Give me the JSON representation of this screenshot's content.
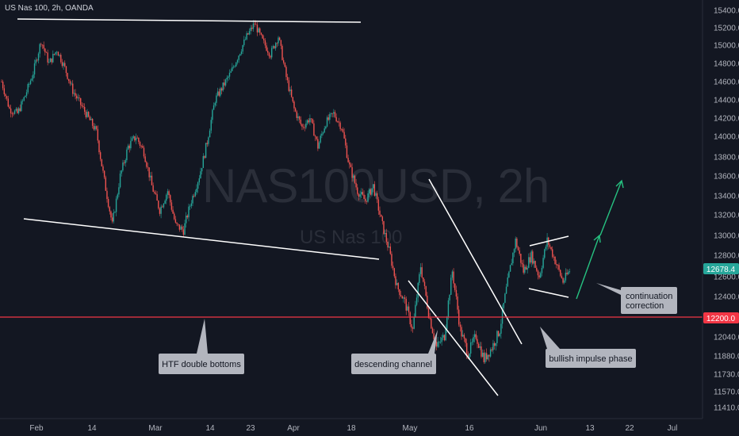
{
  "header": {
    "symbol_line": "US Nas 100, 2h, OANDA"
  },
  "watermark": {
    "ticker": "NAS100USD, 2h",
    "name": "US Nas 100"
  },
  "price_badge": {
    "value": "12678.4",
    "color": "#26a69a"
  },
  "support_badge": {
    "value": "12200.0",
    "color": "#f23645"
  },
  "annotations": [
    {
      "text": "HTF double bottoms"
    },
    {
      "text": "descending channel"
    },
    {
      "text": "bullish impulse phase"
    },
    {
      "text": "continuation",
      "text2": "correction"
    }
  ],
  "chart_data": {
    "type": "candlestick",
    "title": "US Nas 100, 2h, OANDA",
    "xlabel": "",
    "ylabel": "",
    "ylim": [
      11330,
      15460
    ],
    "y_ticks": [
      "15400.0",
      "15200.0",
      "15000.0",
      "14800.0",
      "14600.0",
      "14400.0",
      "14200.0",
      "14000.0",
      "13800.0",
      "13600.0",
      "13400.0",
      "13200.0",
      "13000.0",
      "12800.0",
      "12600.0",
      "12400.0",
      "12200.0",
      "12040.0",
      "11880.0",
      "11730.0",
      "11570.0",
      "11410.0"
    ],
    "x_ticks": [
      "Feb",
      "14",
      "Mar",
      "14",
      "23",
      "Apr",
      "18",
      "May",
      "16",
      "Jun",
      "13",
      "22",
      "Jul"
    ],
    "approx_close_path": [
      [
        0,
        14600
      ],
      [
        6,
        14300
      ],
      [
        12,
        14250
      ],
      [
        18,
        14450
      ],
      [
        24,
        14700
      ],
      [
        30,
        15050
      ],
      [
        36,
        14800
      ],
      [
        42,
        14950
      ],
      [
        48,
        14750
      ],
      [
        54,
        14500
      ],
      [
        60,
        14350
      ],
      [
        66,
        14200
      ],
      [
        72,
        14050
      ],
      [
        78,
        13550
      ],
      [
        84,
        13100
      ],
      [
        90,
        13600
      ],
      [
        96,
        13900
      ],
      [
        102,
        14000
      ],
      [
        108,
        13850
      ],
      [
        114,
        13500
      ],
      [
        120,
        13250
      ],
      [
        126,
        13450
      ],
      [
        132,
        13100
      ],
      [
        138,
        13050
      ],
      [
        144,
        13350
      ],
      [
        150,
        13600
      ],
      [
        156,
        13950
      ],
      [
        162,
        14400
      ],
      [
        168,
        14550
      ],
      [
        174,
        14700
      ],
      [
        180,
        14900
      ],
      [
        186,
        15100
      ],
      [
        192,
        15250
      ],
      [
        198,
        15050
      ],
      [
        204,
        14900
      ],
      [
        210,
        15100
      ],
      [
        216,
        14650
      ],
      [
        222,
        14300
      ],
      [
        228,
        14100
      ],
      [
        234,
        14200
      ],
      [
        240,
        13900
      ],
      [
        246,
        14150
      ],
      [
        252,
        14250
      ],
      [
        258,
        14100
      ],
      [
        264,
        13700
      ],
      [
        270,
        13450
      ],
      [
        276,
        13350
      ],
      [
        282,
        13500
      ],
      [
        288,
        13150
      ],
      [
        294,
        12850
      ],
      [
        300,
        12500
      ],
      [
        306,
        12350
      ],
      [
        312,
        12100
      ],
      [
        318,
        12700
      ],
      [
        324,
        12250
      ],
      [
        330,
        11950
      ],
      [
        336,
        12050
      ],
      [
        342,
        12650
      ],
      [
        348,
        12100
      ],
      [
        354,
        11900
      ],
      [
        360,
        12050
      ],
      [
        366,
        11850
      ],
      [
        372,
        11950
      ],
      [
        378,
        12100
      ],
      [
        384,
        12550
      ],
      [
        390,
        12950
      ],
      [
        396,
        12650
      ],
      [
        402,
        12800
      ],
      [
        408,
        12600
      ],
      [
        414,
        12950
      ],
      [
        420,
        12750
      ],
      [
        426,
        12550
      ],
      [
        432,
        12678
      ]
    ],
    "key_levels": [
      {
        "name": "support",
        "value": 12200.0,
        "color": "#f23645"
      },
      {
        "name": "last_price",
        "value": 12678.4,
        "color": "#26a69a"
      }
    ],
    "bull_color": "#26a69a",
    "bear_color": "#ef5350",
    "grid": false,
    "legend": "none"
  }
}
